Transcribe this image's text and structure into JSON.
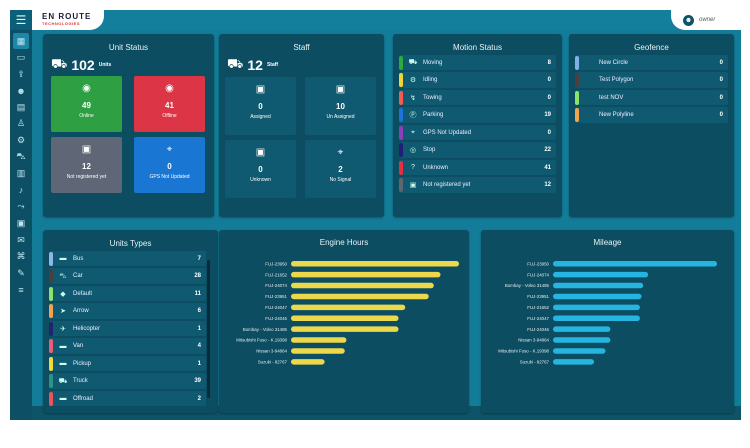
{
  "header": {
    "logo_line1": "EN ROUTE",
    "logo_line2": "TECHNOLOGIES",
    "user_name": "owner",
    "menu_icon": "hamburger-icon"
  },
  "sidebar": {
    "icons": [
      "dashboard-icon",
      "monitor-icon",
      "upload-icon",
      "users-icon",
      "document-icon",
      "user-icon",
      "user-settings-icon",
      "car-icon",
      "report-icon",
      "bell-icon",
      "route-icon",
      "device-icon",
      "mail-icon",
      "command-icon",
      "wrench-icon",
      "filter-icon"
    ]
  },
  "unit_status": {
    "title": "Unit Status",
    "total": "102",
    "total_label": "Units",
    "tiles": [
      {
        "value": "49",
        "label": "Online",
        "color": "#2ea043"
      },
      {
        "value": "41",
        "label": "Offline",
        "color": "#dc3545"
      },
      {
        "value": "12",
        "label": "Not registered yet",
        "color": "#5f6776"
      },
      {
        "value": "0",
        "label": "GPS Not Updated",
        "color": "#1976d2"
      }
    ]
  },
  "staff": {
    "title": "Staff",
    "total": "12",
    "total_label": "Staff",
    "tiles": [
      {
        "value": "0",
        "label": "Assigned"
      },
      {
        "value": "10",
        "label": "Un Assigned"
      },
      {
        "value": "0",
        "label": "Unknown"
      },
      {
        "value": "2",
        "label": "No Signal"
      }
    ]
  },
  "motion_status": {
    "title": "Motion Status",
    "items": [
      {
        "label": "Moving",
        "value": "8",
        "color": "#2eaa3f",
        "icon": "truck-icon"
      },
      {
        "label": "Idling",
        "value": "0",
        "color": "#ecd43a",
        "icon": "engine-icon"
      },
      {
        "label": "Towing",
        "value": "0",
        "color": "#f25c54",
        "icon": "tow-icon"
      },
      {
        "label": "Parking",
        "value": "19",
        "color": "#1d73d9",
        "icon": "parking-icon"
      },
      {
        "label": "GPS Not Updated",
        "value": "0",
        "color": "#8e3dbc",
        "icon": "gps-icon"
      },
      {
        "label": "Stop",
        "value": "22",
        "color": "#1f1f7a",
        "icon": "stop-icon"
      },
      {
        "label": "Unknown",
        "value": "41",
        "color": "#e2303f",
        "icon": "question-icon"
      },
      {
        "label": "Not registered yet",
        "value": "12",
        "color": "#5d6673",
        "icon": "unregistered-icon"
      }
    ]
  },
  "geofence": {
    "title": "Geofence",
    "items": [
      {
        "label": "New Circle",
        "value": "0",
        "color": "#7fb0e8"
      },
      {
        "label": "Test Polygon",
        "value": "0",
        "color": "#4a3f3f"
      },
      {
        "label": "test NOV",
        "value": "0",
        "color": "#8ce36a"
      },
      {
        "label": "New Polyline",
        "value": "0",
        "color": "#f2a34d"
      }
    ]
  },
  "unit_types": {
    "title": "Units Types",
    "items": [
      {
        "label": "Bus",
        "value": "7",
        "color": "#8bb8ea",
        "icon": "bus-icon"
      },
      {
        "label": "Car",
        "value": "28",
        "color": "#4a3f3f",
        "icon": "car-icon"
      },
      {
        "label": "Default",
        "value": "11",
        "color": "#8ce36a",
        "icon": "default-icon"
      },
      {
        "label": "Arrow",
        "value": "6",
        "color": "#f2a34d",
        "icon": "arrow-icon"
      },
      {
        "label": "Helicopter",
        "value": "1",
        "color": "#22226e",
        "icon": "helicopter-icon"
      },
      {
        "label": "Van",
        "value": "4",
        "color": "#ea5d7a",
        "icon": "van-icon"
      },
      {
        "label": "Pickup",
        "value": "1",
        "color": "#efdc3c",
        "icon": "pickup-icon"
      },
      {
        "label": "Truck",
        "value": "39",
        "color": "#2c9485",
        "icon": "truck-icon"
      },
      {
        "label": "Offroad",
        "value": "2",
        "color": "#f0525a",
        "icon": "offroad-icon"
      }
    ]
  },
  "chart_data": [
    {
      "type": "bar",
      "orientation": "horizontal",
      "title": "Engine Hours",
      "color": "#ecd84a",
      "categories": [
        "FUJ-23950",
        "FUJ-21652",
        "FUJ-24074",
        "FUJ-23951",
        "FUJ-24047",
        "FUJ-24046",
        "Bombay - Volvo 31485",
        "Mitsubishi Fuso - K.19398",
        "Nissan 3-94864",
        "Suzuki - 82767"
      ],
      "values": [
        100,
        89,
        85,
        82,
        68,
        64,
        64,
        33,
        32,
        20
      ],
      "xlim": [
        0,
        100
      ]
    },
    {
      "type": "bar",
      "orientation": "horizontal",
      "title": "Mileage",
      "color": "#25b5e0",
      "categories": [
        "FUJ-23950",
        "FUJ-24074",
        "Bombay - Volvo 31485",
        "FUJ-23951",
        "FUJ-21652",
        "FUJ-24047",
        "FUJ-24046",
        "Nissan 3-94864",
        "Mitsubishi Fuso - K.19398",
        "Suzuki - 82767"
      ],
      "values": [
        100,
        58,
        55,
        54,
        53,
        53,
        35,
        35,
        32,
        25
      ],
      "xlim": [
        0,
        100
      ]
    }
  ]
}
